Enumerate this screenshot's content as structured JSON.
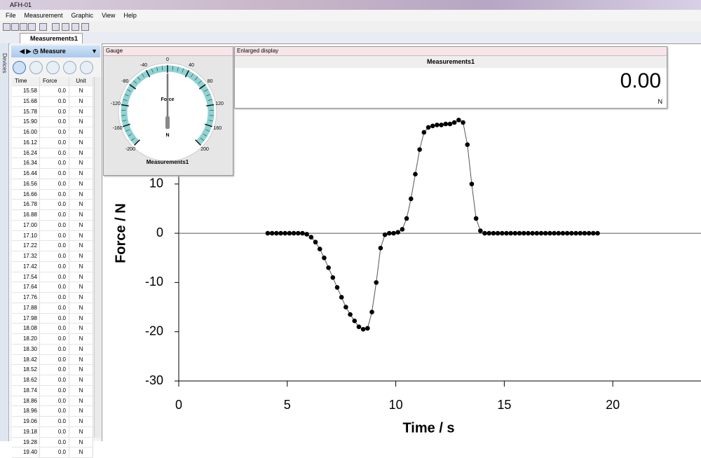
{
  "window": {
    "title": "AFH-01"
  },
  "menu": [
    "File",
    "Measurement",
    "Graphic",
    "View",
    "Help"
  ],
  "tab": "Measurements1",
  "sidebar": "Devices",
  "panel": {
    "mode": "Measure",
    "table": {
      "columns": [
        "Time",
        "Force",
        "Unit"
      ],
      "rows": [
        [
          "15.58",
          "0.0",
          "N"
        ],
        [
          "15.68",
          "0.0",
          "N"
        ],
        [
          "15.78",
          "0.0",
          "N"
        ],
        [
          "15.90",
          "0.0",
          "N"
        ],
        [
          "16.00",
          "0.0",
          "N"
        ],
        [
          "16.12",
          "0.0",
          "N"
        ],
        [
          "16.24",
          "0.0",
          "N"
        ],
        [
          "16.34",
          "0.0",
          "N"
        ],
        [
          "16.44",
          "0.0",
          "N"
        ],
        [
          "16.56",
          "0.0",
          "N"
        ],
        [
          "16.66",
          "0.0",
          "N"
        ],
        [
          "16.78",
          "0.0",
          "N"
        ],
        [
          "16.88",
          "0.0",
          "N"
        ],
        [
          "17.00",
          "0.0",
          "N"
        ],
        [
          "17.10",
          "0.0",
          "N"
        ],
        [
          "17.22",
          "0.0",
          "N"
        ],
        [
          "17.32",
          "0.0",
          "N"
        ],
        [
          "17.42",
          "0.0",
          "N"
        ],
        [
          "17.54",
          "0.0",
          "N"
        ],
        [
          "17.64",
          "0.0",
          "N"
        ],
        [
          "17.76",
          "0.0",
          "N"
        ],
        [
          "17.88",
          "0.0",
          "N"
        ],
        [
          "17.98",
          "0.0",
          "N"
        ],
        [
          "18.08",
          "0.0",
          "N"
        ],
        [
          "18.20",
          "0.0",
          "N"
        ],
        [
          "18.30",
          "0.0",
          "N"
        ],
        [
          "18.42",
          "0.0",
          "N"
        ],
        [
          "18.52",
          "0.0",
          "N"
        ],
        [
          "18.62",
          "0.0",
          "N"
        ],
        [
          "18.74",
          "0.0",
          "N"
        ],
        [
          "18.86",
          "0.0",
          "N"
        ],
        [
          "18.96",
          "0.0",
          "N"
        ],
        [
          "19.06",
          "0.0",
          "N"
        ],
        [
          "19.18",
          "0.0",
          "N"
        ],
        [
          "19.28",
          "0.0",
          "N"
        ],
        [
          "19.40",
          "0.0",
          "N"
        ]
      ]
    }
  },
  "gauge": {
    "title": "Gauge",
    "label": "Force",
    "unit": "N",
    "name": "Measurements1",
    "ticks": [
      -200,
      -160,
      -120,
      -80,
      -40,
      0,
      40,
      80,
      120,
      160,
      200
    ],
    "value": 0
  },
  "display": {
    "title": "Enlarged display",
    "name": "Measurements1",
    "value": "0.00",
    "unit": "N"
  },
  "chart_data": {
    "type": "line",
    "xlabel": "Time / s",
    "ylabel": "Force / N",
    "color": "#000000",
    "line_color": "#555555",
    "x": [
      4.1,
      4.3,
      4.5,
      4.7,
      4.9,
      5.1,
      5.3,
      5.5,
      5.7,
      5.9,
      6.1,
      6.3,
      6.5,
      6.7,
      6.9,
      7.1,
      7.3,
      7.5,
      7.7,
      7.9,
      8.1,
      8.3,
      8.5,
      8.7,
      8.9,
      9.1,
      9.3,
      9.5,
      9.7,
      9.9,
      10.1,
      10.3,
      10.5,
      10.7,
      10.9,
      11.1,
      11.3,
      11.5,
      11.7,
      11.9,
      12.1,
      12.3,
      12.5,
      12.7,
      12.9,
      13.1,
      13.3,
      13.5,
      13.7,
      13.9,
      14.1,
      14.3,
      14.5,
      14.7,
      14.9,
      15.1,
      15.3,
      15.5,
      15.7,
      15.9,
      16.1,
      16.3,
      16.5,
      16.7,
      16.9,
      17.1,
      17.3,
      17.5,
      17.7,
      17.9,
      18.1,
      18.3,
      18.5,
      18.7,
      18.9,
      19.1,
      19.3
    ],
    "values": [
      0,
      0,
      0,
      0,
      0,
      0,
      0,
      0,
      0,
      -0.2,
      -0.8,
      -1.8,
      -3.2,
      -5.0,
      -7.0,
      -9.0,
      -11.0,
      -13.0,
      -15.0,
      -16.5,
      -17.8,
      -19.0,
      -19.5,
      -19.3,
      -16.0,
      -10.0,
      -3.0,
      -0.3,
      0,
      0,
      0.2,
      0.8,
      3.0,
      7.0,
      12.0,
      17.0,
      20.5,
      21.5,
      21.8,
      22.0,
      22.0,
      22.2,
      22.2,
      22.5,
      23.0,
      22.5,
      18.0,
      10.0,
      3.0,
      0.5,
      0,
      0,
      0,
      0,
      0,
      0,
      0,
      0,
      0,
      0,
      0,
      0,
      0,
      0,
      0,
      0,
      0,
      0,
      0,
      0,
      0,
      0,
      0,
      0,
      0,
      0,
      0
    ],
    "xlim": [
      0,
      24
    ],
    "ylim": [
      -30,
      35
    ],
    "xticks": [
      0,
      5,
      10,
      15,
      20
    ],
    "yticks": [
      -30,
      -20,
      -10,
      0,
      10
    ],
    "zero_line": true
  }
}
